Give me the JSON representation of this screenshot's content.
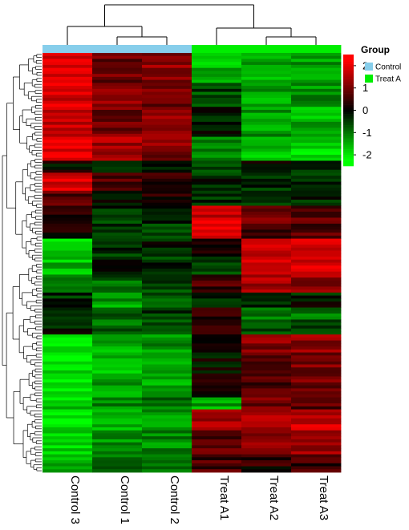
{
  "chart_data": {
    "type": "heatmap",
    "columns": [
      "Control 3",
      "Control 1",
      "Control 2",
      "Treat A1",
      "Treat A2",
      "Treat A3"
    ],
    "column_groups": [
      "Control",
      "Control",
      "Control",
      "Treat A",
      "Treat A",
      "Treat A"
    ],
    "row_blocks": [
      {
        "rows": 10,
        "values": [
          2.0,
          0.9,
          1.2,
          -1.6,
          -1.5,
          -1.4
        ]
      },
      {
        "rows": 8,
        "values": [
          1.9,
          1.2,
          1.0,
          -0.6,
          -1.4,
          -1.3
        ]
      },
      {
        "rows": 10,
        "values": [
          1.8,
          1.0,
          1.3,
          -0.2,
          -1.3,
          -1.5
        ]
      },
      {
        "rows": 8,
        "values": [
          2.0,
          1.4,
          1.1,
          -1.3,
          -1.7,
          -1.8
        ]
      },
      {
        "rows": 4,
        "values": [
          0.0,
          -0.1,
          0.0,
          -0.6,
          -0.1,
          -0.2
        ]
      },
      {
        "rows": 6,
        "values": [
          1.9,
          0.6,
          0.4,
          -0.3,
          -0.4,
          -0.5
        ]
      },
      {
        "rows": 5,
        "values": [
          0.7,
          -0.2,
          0.3,
          -0.4,
          -0.3,
          -0.3
        ]
      },
      {
        "rows": 6,
        "values": [
          0.5,
          -0.4,
          -0.3,
          1.8,
          0.9,
          0.8
        ]
      },
      {
        "rows": 5,
        "values": [
          0.3,
          -0.5,
          -0.4,
          2.0,
          0.6,
          0.7
        ]
      },
      {
        "rows": 6,
        "values": [
          -1.8,
          -0.4,
          -0.2,
          0.2,
          1.9,
          1.8
        ]
      },
      {
        "rows": 6,
        "values": [
          -1.6,
          -0.2,
          -0.4,
          -0.5,
          1.8,
          1.9
        ]
      },
      {
        "rows": 6,
        "values": [
          -0.7,
          -0.8,
          -0.5,
          0.5,
          1.5,
          1.3
        ]
      },
      {
        "rows": 5,
        "values": [
          -0.4,
          -1.3,
          -0.8,
          -0.3,
          -0.4,
          -0.2
        ]
      },
      {
        "rows": 4,
        "values": [
          -0.5,
          -0.6,
          -0.4,
          0.4,
          -1.2,
          -1.0
        ]
      },
      {
        "rows": 5,
        "values": [
          -0.2,
          -0.9,
          -0.6,
          0.6,
          -0.5,
          -0.4
        ]
      },
      {
        "rows": 6,
        "values": [
          -2.0,
          -1.5,
          -1.3,
          -0.2,
          1.1,
          1.3
        ]
      },
      {
        "rows": 8,
        "values": [
          -2.0,
          -1.6,
          -1.5,
          0.0,
          0.8,
          1.0
        ]
      },
      {
        "rows": 7,
        "values": [
          -1.9,
          -1.4,
          -1.5,
          0.1,
          0.7,
          0.9
        ]
      },
      {
        "rows": 4,
        "values": [
          -1.8,
          -1.2,
          -1.0,
          -1.4,
          1.0,
          0.8
        ]
      },
      {
        "rows": 7,
        "values": [
          -2.0,
          -1.5,
          -1.4,
          1.3,
          1.6,
          1.7
        ]
      },
      {
        "rows": 8,
        "values": [
          -1.7,
          -1.3,
          -1.2,
          0.8,
          1.2,
          1.4
        ]
      },
      {
        "rows": 6,
        "values": [
          -1.5,
          -1.0,
          -0.9,
          0.6,
          0.3,
          0.5
        ]
      }
    ],
    "color_scale": {
      "min": -2.5,
      "max": 2.5,
      "ticks": [
        2,
        1,
        0,
        -1,
        -2
      ],
      "tick_labels": [
        "2",
        "1",
        "0",
        "-1",
        "-2"
      ],
      "low_color": "#00ff00",
      "mid_color": "#000000",
      "high_color": "#ff0000"
    },
    "legend": {
      "title": "Group",
      "items": [
        {
          "label": "Control",
          "color": "#87ceeb"
        },
        {
          "label": "Treat A",
          "color": "#00ee00"
        }
      ]
    },
    "dendrogram": {
      "columns": true,
      "rows": true
    }
  }
}
